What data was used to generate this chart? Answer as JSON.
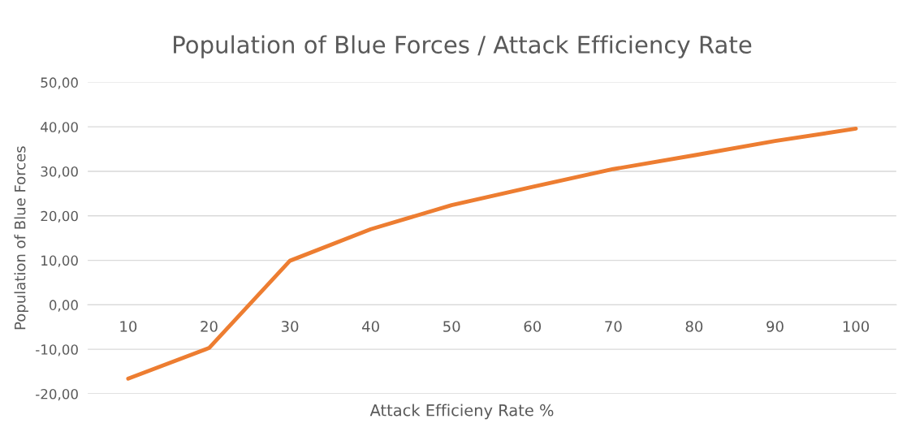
{
  "chart_data": {
    "type": "line",
    "title": "Population of Blue Forces / Attack Efficiency Rate",
    "xlabel": "Attack Efficieny Rate %",
    "ylabel": "Population of Blue Forces",
    "categories": [
      "10",
      "20",
      "30",
      "40",
      "50",
      "60",
      "70",
      "80",
      "90",
      "100"
    ],
    "series": [
      {
        "color": "#ed7d31",
        "values": [
          -16.6,
          -9.7,
          9.9,
          17.0,
          22.4,
          26.5,
          30.5,
          33.6,
          36.8,
          39.6
        ]
      }
    ],
    "ylim": [
      -20,
      50
    ],
    "yticks": [
      {
        "value": -20,
        "label": "-20,00"
      },
      {
        "value": -10,
        "label": "-10,00"
      },
      {
        "value": 0,
        "label": "0,00"
      },
      {
        "value": 10,
        "label": "10,00"
      },
      {
        "value": 20,
        "label": "20,00"
      },
      {
        "value": 30,
        "label": "30,00"
      },
      {
        "value": 40,
        "label": "40,00"
      },
      {
        "value": 50,
        "label": "50,00"
      }
    ],
    "grid": "y",
    "legend": false,
    "marker": "none",
    "line_style": "solid"
  }
}
